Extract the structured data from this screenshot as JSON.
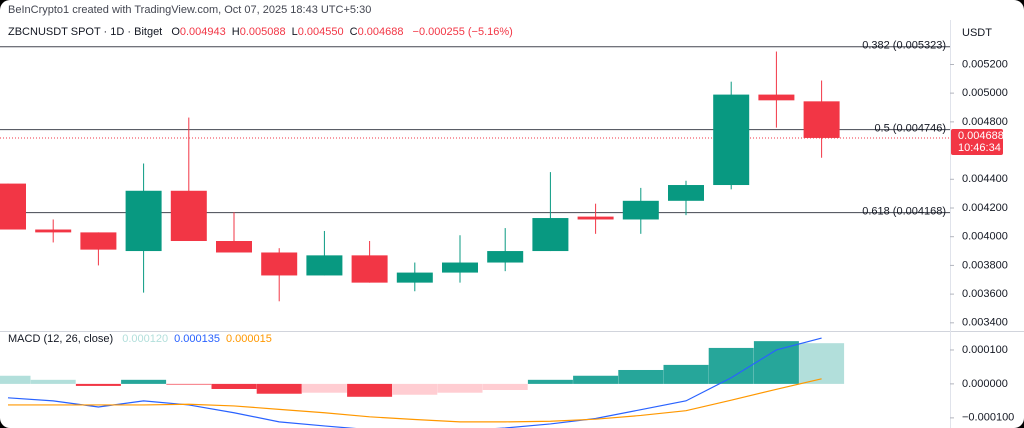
{
  "header": {
    "credit": "BeInCrypto1 created with TradingView.com, Oct 07, 2025 18:43 UTC+5:30",
    "symbol": "ZBCNUSDT SPOT · 1D · Bitget",
    "ohlc": [
      {
        "label": "O",
        "value": "0.004943"
      },
      {
        "label": "H",
        "value": "0.005088"
      },
      {
        "label": "L",
        "value": "0.004550"
      },
      {
        "label": "C",
        "value": "0.004688"
      }
    ],
    "change": "−0.000255 (−5.16%)"
  },
  "chart_data": [
    {
      "type": "candlestick",
      "y_axis_label": "USDT",
      "open": [
        0.00437,
        0.00405,
        0.00403,
        0.0039,
        0.00432,
        0.00397,
        0.00389,
        0.00373,
        0.00387,
        0.00368,
        0.00375,
        0.00382,
        0.0039,
        0.00414,
        0.00412,
        0.00425,
        0.00436,
        0.00499,
        0.004943
      ],
      "high": [
        0.00437,
        0.00412,
        0.00403,
        0.00451,
        0.00483,
        0.00417,
        0.00392,
        0.00404,
        0.00397,
        0.00382,
        0.00401,
        0.00406,
        0.00445,
        0.00423,
        0.00434,
        0.00439,
        0.00508,
        0.00529,
        0.005088
      ],
      "low": [
        0.00405,
        0.00396,
        0.0038,
        0.00361,
        0.00397,
        0.00389,
        0.00355,
        0.00373,
        0.00368,
        0.00362,
        0.00368,
        0.00376,
        0.0039,
        0.00402,
        0.00402,
        0.00415,
        0.00433,
        0.00476,
        0.00455
      ],
      "close": [
        0.00405,
        0.00403,
        0.00391,
        0.00432,
        0.00397,
        0.00389,
        0.00373,
        0.00387,
        0.00368,
        0.00375,
        0.00382,
        0.0039,
        0.00413,
        0.00412,
        0.00425,
        0.00436,
        0.00499,
        0.00495,
        0.004688
      ],
      "up_color": "#089981",
      "down_color": "#f23645",
      "ylim": [
        0.00335,
        0.00544
      ],
      "yticks": [
        {
          "value": 0.0034,
          "label": "0.003400"
        },
        {
          "value": 0.0036,
          "label": "0.003600"
        },
        {
          "value": 0.0038,
          "label": "0.003800"
        },
        {
          "value": 0.004,
          "label": "0.004000"
        },
        {
          "value": 0.0042,
          "label": "0.004200"
        },
        {
          "value": 0.0044,
          "label": "0.004400"
        },
        {
          "value": 0.0048,
          "label": "0.004800"
        },
        {
          "value": 0.005,
          "label": "0.005000"
        },
        {
          "value": 0.0052,
          "label": "0.005200"
        }
      ],
      "levels": [
        {
          "label": "0.382 (0.005323)",
          "value": 0.005323
        },
        {
          "label": "0.5 (0.004746)",
          "value": 0.004746
        },
        {
          "label": "0.618 (0.004168)",
          "value": 0.004168
        }
      ],
      "last_price": {
        "value": 0.004688,
        "label": "0.004688",
        "countdown": "10:46:34"
      }
    },
    {
      "type": "macd",
      "title": "MACD (12, 26, close)",
      "ylim": [
        -0.00013,
        0.00015
      ],
      "yticks": [
        {
          "value": -0.0001,
          "label": "−0.000100"
        },
        {
          "value": 0,
          "label": "0.000000"
        },
        {
          "value": 0.0001,
          "label": "0.000100"
        }
      ],
      "series": [
        {
          "kind": "histogram",
          "color": "#b2dfdb",
          "last_label": "0.000120",
          "values": [
            2.4e-05,
            1.2e-05,
            -6e-06,
            1.2e-05,
            -2e-06,
            -1.5e-05,
            -2.9e-05,
            -2.6e-05,
            -3.8e-05,
            -3.2e-05,
            -2.6e-05,
            -1.8e-05,
            1.2e-05,
            2.4e-05,
            4.1e-05,
            5.6e-05,
            0.000106,
            0.000126,
            0.00012
          ],
          "colors": [
            "#b2dfdb",
            "#b2dfdb",
            "#f23645",
            "#26a69a",
            "#f23645",
            "#f23645",
            "#f23645",
            "#ffcdd2",
            "#f23645",
            "#ffcdd2",
            "#ffcdd2",
            "#ffcdd2",
            "#26a69a",
            "#26a69a",
            "#26a69a",
            "#26a69a",
            "#26a69a",
            "#26a69a",
            "#b2dfdb"
          ]
        },
        {
          "kind": "line",
          "color": "#2962ff",
          "last_label": "0.000135",
          "values": [
            -4.1e-05,
            -5e-05,
            -6.8e-05,
            -5e-05,
            -6.2e-05,
            -8.5e-05,
            -0.000112,
            -0.000124,
            -0.000135,
            -0.000138,
            -0.000138,
            -0.00013,
            -0.000118,
            -0.000102,
            -7.6e-05,
            -5e-05,
            1.8e-05,
            0.0001,
            0.000135
          ]
        },
        {
          "kind": "line",
          "color": "#ff9800",
          "last_label": "0.000015",
          "values": [
            -6.2e-05,
            -6.2e-05,
            -6.2e-05,
            -6.2e-05,
            -6e-05,
            -6.5e-05,
            -7.5e-05,
            -8.5e-05,
            -9.7e-05,
            -0.000105,
            -0.000112,
            -0.000112,
            -0.00011,
            -0.000104,
            -9.3e-05,
            -7.9e-05,
            -4.8e-05,
            -1.6e-05,
            1.5e-05
          ]
        }
      ]
    }
  ]
}
